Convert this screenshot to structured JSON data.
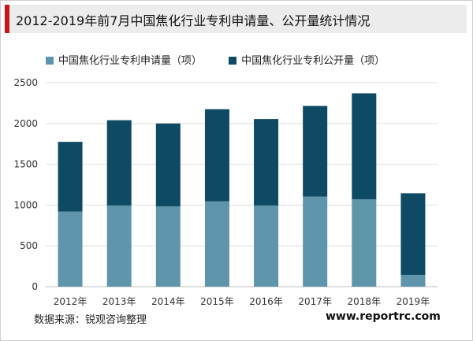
{
  "title": "2012-2019年前7月中国焦化行业专利申请量、公开量统计情况",
  "colors": {
    "applications": "#5f95ab",
    "publications": "#0e4a64",
    "accent": "#c8161d",
    "grid": "#dedede"
  },
  "legend": [
    "中国焦化行业专利申请量（项）",
    "中国焦化行业专利公开量（项）"
  ],
  "source": "数据来源：锐观咨询整理",
  "website": "www.reportrc.com",
  "chart_data": {
    "type": "bar",
    "stacked": true,
    "categories": [
      "2012年",
      "2013年",
      "2014年",
      "2015年",
      "2016年",
      "2017年",
      "2018年",
      "2019年"
    ],
    "series": [
      {
        "name": "中国焦化行业专利申请量（项）",
        "values": [
          920,
          995,
          985,
          1045,
          995,
          1105,
          1070,
          145
        ]
      },
      {
        "name": "中国焦化行业专利公开量（项）",
        "values": [
          855,
          1045,
          1015,
          1130,
          1060,
          1110,
          1300,
          1000
        ]
      }
    ],
    "ylim": [
      0,
      2500
    ],
    "yticks": [
      0,
      500,
      1000,
      1500,
      2000,
      2500
    ],
    "grid": true,
    "legend_position": "top"
  }
}
